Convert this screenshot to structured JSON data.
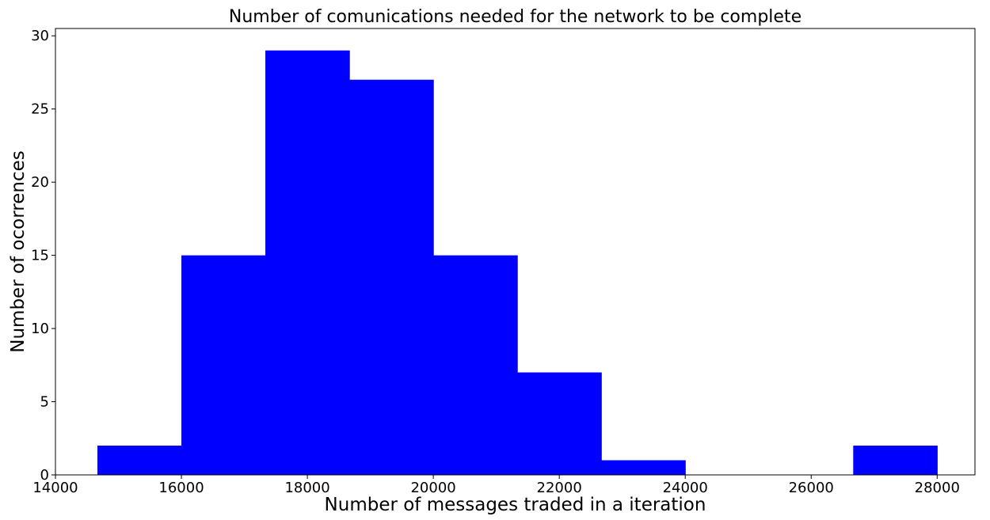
{
  "chart_data": {
    "type": "bar",
    "subtype": "histogram",
    "title": "Number of comunications needed for the network to be complete",
    "xlabel": "Number of messages traded in a iteration",
    "ylabel": "Number of ocorrences",
    "xlim": [
      14000,
      28600
    ],
    "ylim": [
      0,
      30.5
    ],
    "xticks": [
      "14000",
      "16000",
      "18000",
      "20000",
      "22000",
      "24000",
      "26000",
      "28000"
    ],
    "yticks": [
      "0",
      "5",
      "10",
      "15",
      "20",
      "25",
      "30"
    ],
    "bins": [
      {
        "x0": 14667,
        "x1": 16000,
        "count": 2
      },
      {
        "x0": 16000,
        "x1": 17333,
        "count": 15
      },
      {
        "x0": 17333,
        "x1": 18667,
        "count": 29
      },
      {
        "x0": 18667,
        "x1": 20000,
        "count": 27
      },
      {
        "x0": 20000,
        "x1": 21333,
        "count": 15
      },
      {
        "x0": 21333,
        "x1": 22667,
        "count": 7
      },
      {
        "x0": 22667,
        "x1": 24000,
        "count": 1
      },
      {
        "x0": 24000,
        "x1": 25333,
        "count": 0
      },
      {
        "x0": 25333,
        "x1": 26667,
        "count": 0
      },
      {
        "x0": 26667,
        "x1": 28000,
        "count": 2
      }
    ],
    "bar_color": "#0000ff",
    "grid": false,
    "legend": "none"
  }
}
